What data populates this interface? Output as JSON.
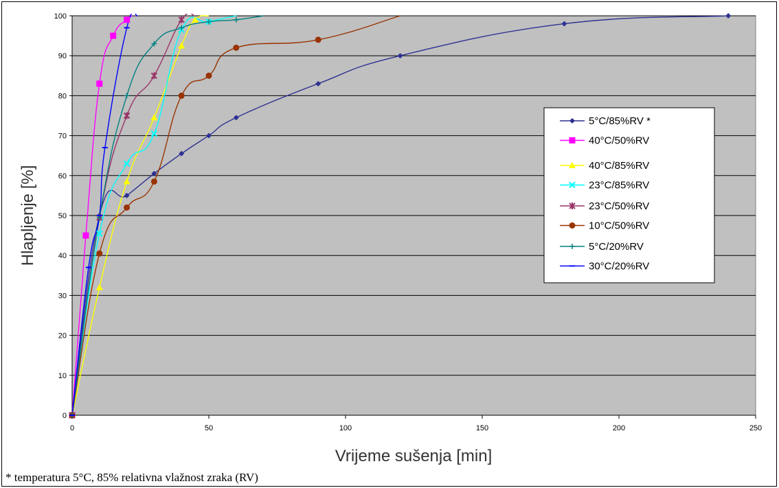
{
  "chart_data": {
    "type": "line",
    "xlabel": "Vrijeme sušenja [min]",
    "ylabel": "Hlapljenje [%]",
    "xlim": [
      0,
      250
    ],
    "ylim": [
      0,
      100
    ],
    "x_ticks": [
      "0",
      "50",
      "100",
      "150",
      "200",
      "250"
    ],
    "y_ticks": [
      "0",
      "10",
      "20",
      "30",
      "40",
      "50",
      "60",
      "70",
      "80",
      "90",
      "100"
    ],
    "grid": "horizontal",
    "plot_background": "#C0C0C0",
    "legend_position": "right",
    "series": [
      {
        "name": "5°C/85%RV *",
        "color": "#2E3192",
        "marker": "diamond",
        "x": [
          0,
          10,
          20,
          30,
          40,
          50,
          60,
          90,
          120,
          180,
          240
        ],
        "y": [
          0,
          50,
          55,
          60.5,
          65.5,
          70,
          74.5,
          83,
          90,
          98,
          100
        ]
      },
      {
        "name": "40°C/50%RV",
        "color": "#FF00FF",
        "marker": "square",
        "x": [
          0,
          5,
          10,
          15,
          20,
          22
        ],
        "y": [
          0,
          45,
          83,
          95,
          99,
          100
        ]
      },
      {
        "name": "40°C/85%RV",
        "color": "#FFFF00",
        "marker": "triangle",
        "x": [
          0,
          10,
          20,
          30,
          40,
          45,
          50
        ],
        "y": [
          0,
          32,
          58.5,
          74.5,
          92.5,
          99,
          100
        ]
      },
      {
        "name": "23°C/85%RV",
        "color": "#00FFFF",
        "marker": "x",
        "x": [
          0,
          10,
          20,
          30,
          40,
          50,
          60
        ],
        "y": [
          0,
          45.5,
          63,
          70.5,
          96.5,
          98.5,
          100
        ]
      },
      {
        "name": "23°C/50%RV",
        "color": "#993366",
        "marker": "star",
        "x": [
          0,
          10,
          20,
          30,
          40,
          45
        ],
        "y": [
          0,
          49.5,
          75,
          85,
          99,
          100
        ]
      },
      {
        "name": "10°C/50%RV",
        "color": "#993300",
        "marker": "circle",
        "x": [
          0,
          10,
          20,
          30,
          40,
          50,
          60,
          90,
          120
        ],
        "y": [
          0,
          40.5,
          52,
          58.5,
          80,
          85,
          92,
          94,
          100
        ]
      },
      {
        "name": "5°C/20%RV",
        "color": "#008080",
        "marker": "plus",
        "x": [
          0,
          10,
          20,
          30,
          40,
          50,
          60,
          70
        ],
        "y": [
          0,
          49.5,
          80,
          93,
          97,
          98.5,
          99,
          100
        ]
      },
      {
        "name": "30°C/20%RV",
        "color": "#0000FF",
        "marker": "dash",
        "x": [
          0,
          6,
          10,
          12,
          20,
          24
        ],
        "y": [
          0,
          37,
          50,
          67,
          97,
          100
        ]
      }
    ]
  },
  "footnote": "*  temperatura 5°C, 85% relativna vlažnost zraka (RV)"
}
